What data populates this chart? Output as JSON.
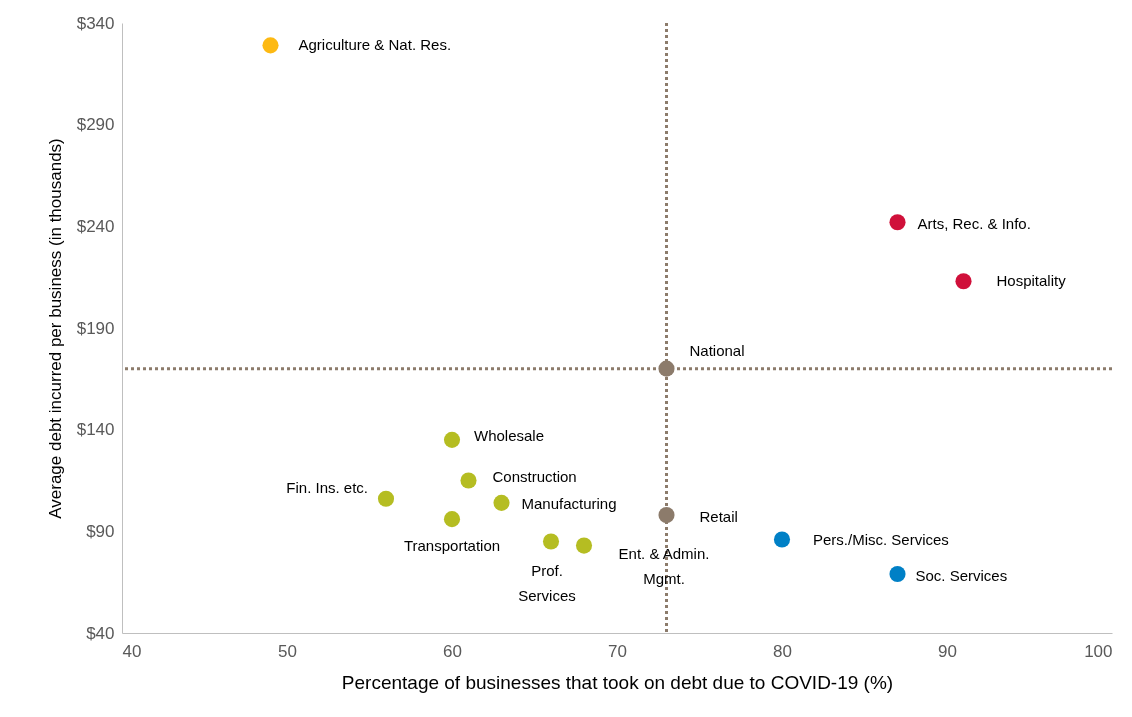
{
  "chart_data": {
    "type": "scatter",
    "xlabel": "Percentage of businesses that took on debt due to COVID-19 (%)",
    "ylabel": "Average debt incurred per business (in thousands)",
    "xlim": [
      40,
      100
    ],
    "xticks": [
      40,
      50,
      60,
      70,
      80,
      90,
      100
    ],
    "ylim": [
      40,
      340
    ],
    "yticks": [
      {
        "value": 40,
        "label": "$40"
      },
      {
        "value": 90,
        "label": "$90"
      },
      {
        "value": 140,
        "label": "$140"
      },
      {
        "value": 190,
        "label": "$190"
      },
      {
        "value": 240,
        "label": "$240"
      },
      {
        "value": 290,
        "label": "$290"
      },
      {
        "value": 340,
        "label": "$340"
      }
    ],
    "grid": false,
    "legend": false,
    "marker": "circle",
    "series": [
      {
        "color": "#fdb913",
        "x": [
          49
        ],
        "values": [
          329
        ]
      },
      {
        "color": "#d0103a",
        "x": [
          87,
          91
        ],
        "values": [
          242,
          213
        ]
      },
      {
        "color": "#8c7b6b",
        "x": [
          73,
          73
        ],
        "values": [
          170,
          98
        ]
      },
      {
        "color": "#b5bd22",
        "x": [
          60,
          61,
          56,
          63,
          60,
          66,
          68
        ],
        "values": [
          135,
          115,
          106,
          104,
          96,
          85,
          83
        ]
      },
      {
        "color": "#0080c6",
        "x": [
          80,
          87
        ],
        "values": [
          86,
          69
        ]
      }
    ],
    "ref_lines": [
      {
        "axis": "x",
        "value": 73,
        "color": "#8c7b6b",
        "line_style": "dotted"
      },
      {
        "axis": "y",
        "value": 170,
        "color": "#8c7b6b",
        "line_style": "dotted"
      }
    ],
    "annotations": [
      {
        "text": "Agriculture & Nat. Res.",
        "x": 49,
        "y": 329
      },
      {
        "text": "Arts, Rec. & Info.",
        "x": 87,
        "y": 242
      },
      {
        "text": "Hospitality",
        "x": 91,
        "y": 213
      },
      {
        "text": "National",
        "x": 73,
        "y": 170
      },
      {
        "text": "Retail",
        "x": 73,
        "y": 98
      },
      {
        "text": "Wholesale",
        "x": 60,
        "y": 135
      },
      {
        "text": "Construction",
        "x": 61,
        "y": 115
      },
      {
        "text": "Fin. Ins. etc.",
        "x": 56,
        "y": 106
      },
      {
        "text": "Manufacturing",
        "x": 63,
        "y": 104
      },
      {
        "text": "Transportation",
        "x": 60,
        "y": 96
      },
      {
        "text": "Prof.\nServices",
        "x": 66,
        "y": 85
      },
      {
        "text": "Ent. & Admin.\nMgmt.",
        "x": 68,
        "y": 83
      },
      {
        "text": "Pers./Misc. Services",
        "x": 80,
        "y": 86
      },
      {
        "text": "Soc. Services",
        "x": 87,
        "y": 69
      }
    ]
  }
}
